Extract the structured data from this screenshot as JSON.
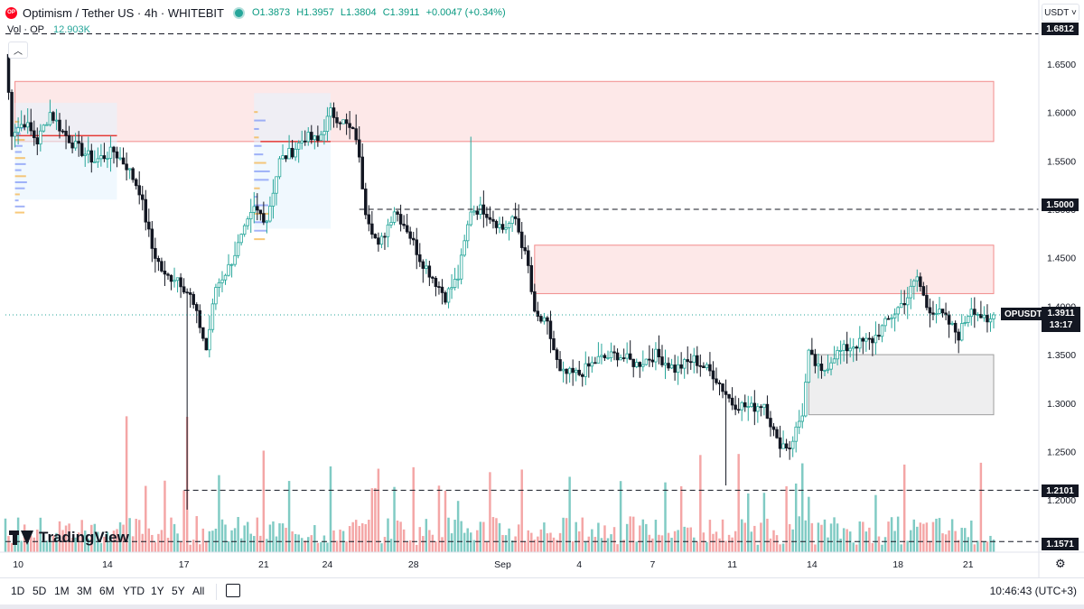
{
  "header": {
    "title": "Optimism / Tether US · 4h · WHITEBIT",
    "logo_text": "OP",
    "open": "O1.3873",
    "high": "H1.3957",
    "low": "L1.3804",
    "close": "C1.3911",
    "change": "+0.0047 (+0.34%)"
  },
  "volume": {
    "label": "Vol · OP",
    "value": "12.903K"
  },
  "currency_button": "USDT ˅",
  "brand": "TradingView",
  "bottom_bar": {
    "timeframes": [
      "1D",
      "5D",
      "1M",
      "3M",
      "6M",
      "YTD",
      "1Y",
      "5Y",
      "All"
    ],
    "clock": "10:46:43 (UTC+3)"
  },
  "price_labels": {
    "top": "1.6812",
    "level_150": "1.5000",
    "symbol": "OPUSDT",
    "last": "1.3911",
    "countdown": "13:17",
    "level_121": "1.2101",
    "level_116": "1.1571"
  },
  "colors": {
    "up": "#26a69a",
    "down": "#131722",
    "vol_up": "#80cbc4",
    "vol_down": "#f4a6a6",
    "zone_red_fill": "#fde8e8",
    "zone_red_border": "#f28b8b",
    "zone_gray_fill": "#eeeeef",
    "zone_gray_border": "#9e9e9e"
  },
  "chart_data": {
    "type": "candlestick",
    "title": "Optimism / Tether US · 4h · WHITEBIT",
    "ylabel": "USDT",
    "ylim": [
      1.148,
      1.69
    ],
    "y_ticks": [
      1.2,
      1.25,
      1.3,
      1.35,
      1.4,
      1.45,
      1.5,
      1.55,
      1.6,
      1.65
    ],
    "x_ticks": [
      "10",
      "14",
      "17",
      "21",
      "24",
      "28",
      "Sep",
      "4",
      "7",
      "11",
      "14",
      "18",
      "21"
    ],
    "grid": false,
    "anchors": [
      [
        0,
        1.66
      ],
      [
        2,
        1.58
      ],
      [
        6,
        1.59
      ],
      [
        10,
        1.57
      ],
      [
        14,
        1.6
      ],
      [
        18,
        1.58
      ],
      [
        22,
        1.565
      ],
      [
        28,
        1.55
      ],
      [
        34,
        1.56
      ],
      [
        38,
        1.545
      ],
      [
        42,
        1.52
      ],
      [
        46,
        1.46
      ],
      [
        50,
        1.43
      ],
      [
        54,
        1.43
      ],
      [
        58,
        1.41
      ],
      [
        61,
        1.38
      ],
      [
        63,
        1.355
      ],
      [
        66,
        1.42
      ],
      [
        70,
        1.44
      ],
      [
        74,
        1.47
      ],
      [
        78,
        1.5
      ],
      [
        82,
        1.49
      ],
      [
        86,
        1.55
      ],
      [
        90,
        1.56
      ],
      [
        94,
        1.575
      ],
      [
        98,
        1.57
      ],
      [
        102,
        1.6
      ],
      [
        106,
        1.59
      ],
      [
        110,
        1.575
      ],
      [
        113,
        1.5
      ],
      [
        117,
        1.46
      ],
      [
        122,
        1.5
      ],
      [
        126,
        1.48
      ],
      [
        130,
        1.45
      ],
      [
        134,
        1.43
      ],
      [
        138,
        1.41
      ],
      [
        142,
        1.43
      ],
      [
        146,
        1.5
      ],
      [
        150,
        1.5
      ],
      [
        156,
        1.48
      ],
      [
        160,
        1.49
      ],
      [
        164,
        1.44
      ],
      [
        166,
        1.39
      ],
      [
        170,
        1.38
      ],
      [
        174,
        1.33
      ],
      [
        180,
        1.33
      ],
      [
        186,
        1.345
      ],
      [
        192,
        1.35
      ],
      [
        198,
        1.34
      ],
      [
        204,
        1.35
      ],
      [
        210,
        1.335
      ],
      [
        216,
        1.345
      ],
      [
        222,
        1.33
      ],
      [
        228,
        1.3
      ],
      [
        234,
        1.295
      ],
      [
        238,
        1.3
      ],
      [
        242,
        1.26
      ],
      [
        246,
        1.255
      ],
      [
        250,
        1.29
      ],
      [
        252,
        1.35
      ],
      [
        256,
        1.33
      ],
      [
        260,
        1.35
      ],
      [
        266,
        1.36
      ],
      [
        272,
        1.365
      ],
      [
        278,
        1.39
      ],
      [
        283,
        1.41
      ],
      [
        286,
        1.43
      ],
      [
        289,
        1.4
      ],
      [
        294,
        1.39
      ],
      [
        299,
        1.37
      ],
      [
        303,
        1.4
      ],
      [
        306,
        1.39
      ],
      [
        308,
        1.38
      ],
      [
        310,
        1.3911
      ]
    ],
    "zones": [
      {
        "kind": "resistance",
        "x0": 3,
        "x1": 310,
        "y0": 1.57,
        "y1": 1.632
      },
      {
        "kind": "resistance",
        "x0": 166,
        "x1": 310,
        "y0": 1.413,
        "y1": 1.463
      },
      {
        "kind": "support",
        "x0": 252,
        "x1": 310,
        "y0": 1.288,
        "y1": 1.35
      }
    ],
    "levels": [
      1.6812,
      1.5,
      1.2101,
      1.1571
    ],
    "last_price": 1.3911,
    "symbol": "OPUSDT"
  }
}
